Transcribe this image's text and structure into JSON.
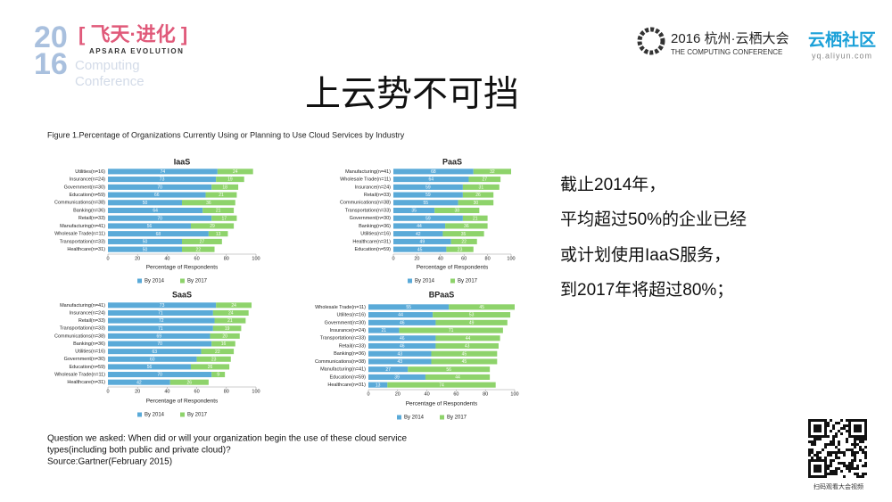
{
  "header": {
    "logo_year": [
      "20",
      "16"
    ],
    "logo_title": "[ 飞天·进化 ]",
    "logo_subtitle": "APSARA EVOLUTION",
    "logo_faded": [
      "Computing",
      "Conference"
    ],
    "conference": "2016 杭州·云栖大会",
    "conference_en": "THE COMPUTING CONFERENCE",
    "community": "云栖社区",
    "community_url": "yq.aliyun.com"
  },
  "title": "上云势不可挡",
  "figure_caption": "Figure 1.Percentage of Organizations Currentiy Using or Planning to Use Cloud Services by Industry",
  "chart_data": [
    {
      "type": "bar",
      "orientation": "horizontal",
      "stacked": true,
      "title": "IaaS",
      "categories": [
        "Utilities(n=16)",
        "Insurance(n=24)",
        "Government(n=30)",
        "Education(n=59)",
        "Communications(n=38)",
        "Banking(n=36)",
        "Retail(n=33)",
        "Manufacturing(n=41)",
        "Wholesale Trade(n=11)",
        "Transportation(n=33)",
        "Healthcare(n=31)"
      ],
      "series": [
        {
          "name": "By 2014",
          "color": "#5aaad8",
          "values": [
            74,
            73,
            70,
            66,
            50,
            64,
            70,
            56,
            68,
            50,
            50
          ]
        },
        {
          "name": "By 2017",
          "color": "#8ed36b",
          "values": [
            24,
            19,
            18,
            21,
            36,
            21,
            17,
            29,
            13,
            27,
            22
          ]
        }
      ],
      "xlabel": "Percentage of Respondents",
      "xlim": [
        0,
        100
      ],
      "xticks": [
        0,
        20,
        40,
        60,
        80,
        100
      ]
    },
    {
      "type": "bar",
      "orientation": "horizontal",
      "stacked": true,
      "title": "PaaS",
      "categories": [
        "Manufacturing(n=41)",
        "Wholesale Trade(n=11)",
        "Insurance(n=24)",
        "Retail(n=33)",
        "Communications(n=38)",
        "Transportation(n=33)",
        "Government(n=30)",
        "Banking(n=36)",
        "Utilities(n=16)",
        "Healthcare(n=31)",
        "Education(n=59)"
      ],
      "series": [
        {
          "name": "By 2014",
          "color": "#5aaad8",
          "values": [
            68,
            64,
            59,
            59,
            55,
            35,
            59,
            44,
            42,
            49,
            45
          ]
        },
        {
          "name": "By 2017",
          "color": "#8ed36b",
          "values": [
            32,
            27,
            31,
            26,
            30,
            38,
            21,
            36,
            35,
            22,
            23
          ]
        }
      ],
      "xlabel": "Percentage of Respondents",
      "xlim": [
        0,
        100
      ],
      "xticks": [
        0,
        20,
        40,
        60,
        80,
        100
      ]
    },
    {
      "type": "bar",
      "orientation": "horizontal",
      "stacked": true,
      "title": "SaaS",
      "categories": [
        "Manufacturing(n=41)",
        "Insurance(n=24)",
        "Retail(n=33)",
        "Transportation(n=33)",
        "Communications(n=38)",
        "Banking(n=36)",
        "Utilities(n=16)",
        "Government(n=30)",
        "Education(n=59)",
        "Wholesale Trade(n=11)",
        "Healthcare(n=31)"
      ],
      "series": [
        {
          "name": "By 2014",
          "color": "#5aaad8",
          "values": [
            73,
            71,
            72,
            71,
            69,
            70,
            63,
            60,
            56,
            70,
            42
          ]
        },
        {
          "name": "By 2017",
          "color": "#8ed36b",
          "values": [
            24,
            24,
            21,
            19,
            20,
            16,
            22,
            23,
            26,
            9,
            26
          ]
        }
      ],
      "xlabel": "Percentage of Respondents",
      "xlim": [
        0,
        100
      ],
      "xticks": [
        0,
        20,
        40,
        60,
        80,
        100
      ]
    },
    {
      "type": "bar",
      "orientation": "horizontal",
      "stacked": true,
      "title": "BPaaS",
      "categories": [
        "Wholesale Trade(n=11)",
        "Utilites(n=16)",
        "Government(n=30)",
        "Insurance(n=24)",
        "Transportation(n=33)",
        "Retail(n=33)",
        "Banking(n=36)",
        "Communications(n=38)",
        "Manufacturing(n=41)",
        "Education(n=59)",
        "Healthcare(n=31)"
      ],
      "series": [
        {
          "name": "By 2014",
          "color": "#5aaad8",
          "values": [
            55,
            44,
            46,
            21,
            46,
            46,
            43,
            43,
            27,
            39,
            13
          ]
        },
        {
          "name": "By 2017",
          "color": "#8ed36b",
          "values": [
            45,
            53,
            49,
            71,
            44,
            43,
            45,
            45,
            56,
            44,
            74
          ]
        }
      ],
      "xlabel": "Percentage of Respondents",
      "xlim": [
        0,
        100
      ],
      "xticks": [
        0,
        20,
        40,
        60,
        80,
        100
      ]
    }
  ],
  "bullets": [
    "截止2014年，",
    "平均超过50%的企业已经",
    "或计划使用IaaS服务，",
    "到2017年将超过80%；"
  ],
  "question": [
    "Question we asked: When did or will  your organization begin the use of these cloud service",
    "types(including both public and private cloud)?"
  ],
  "source": "Source:Gartner(February 2015)",
  "qr_caption": "扫码观看大会视频"
}
